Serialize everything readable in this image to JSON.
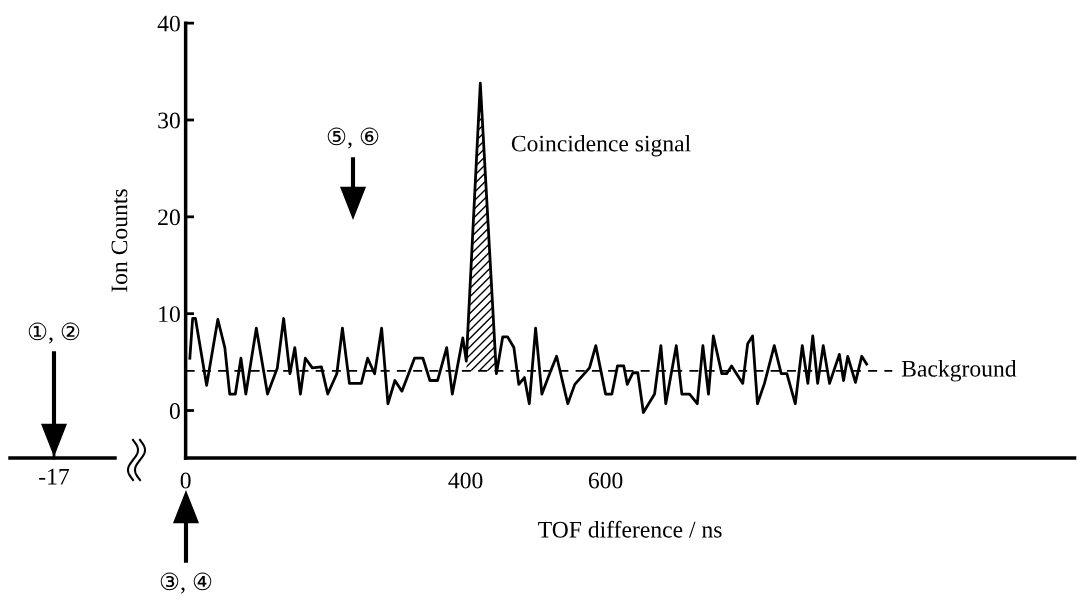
{
  "chart_data": {
    "type": "line",
    "xlabel": "TOF difference / ns",
    "ylabel": "Ion Counts",
    "xlim": [
      0,
      1270
    ],
    "ylim": [
      -4.9,
      40
    ],
    "xticks": [
      0,
      400,
      600
    ],
    "yticks": [
      0,
      10,
      20,
      30,
      40
    ],
    "grid": false,
    "marker": "none",
    "line_style": "solid",
    "series": [
      {
        "type": "line",
        "color": "#000000",
        "x": [
          6,
          10,
          14,
          30,
          46,
          56,
          63,
          71,
          79,
          86,
          101,
          117,
          131,
          140,
          149,
          156,
          164,
          171,
          181,
          194,
          203,
          216,
          224,
          234,
          251,
          260,
          270,
          280,
          289,
          299,
          309,
          327,
          339,
          349,
          360,
          373,
          381,
          396,
          401,
          421,
          444,
          453,
          460,
          469,
          476,
          484,
          491,
          500,
          509,
          520,
          530,
          546,
          556,
          577,
          586,
          600,
          609,
          617,
          626,
          631,
          639,
          646,
          654,
          670,
          679,
          686,
          701,
          709,
          720,
          731,
          739,
          747,
          754,
          766,
          773,
          780,
          796,
          803,
          810,
          817,
          827,
          841,
          851,
          859,
          871,
          881,
          889,
          896,
          903,
          911,
          920,
          934,
          940,
          946,
          957,
          966,
          973
        ],
        "values": [
          5.4,
          9.5,
          9.5,
          2.6,
          9.4,
          6.5,
          1.7,
          1.7,
          5.4,
          1.7,
          8.5,
          1.7,
          4.4,
          9.5,
          3.8,
          6.5,
          1.7,
          5.4,
          4.4,
          4.5,
          1.7,
          3.8,
          8.5,
          2.8,
          2.8,
          5.4,
          3.8,
          8.5,
          0.7,
          3.1,
          2.0,
          5.4,
          5.4,
          3.1,
          3.1,
          6.5,
          1.7,
          7.5,
          5.1,
          33.8,
          3.8,
          7.6,
          7.6,
          6.5,
          2.7,
          3.4,
          0.7,
          8.5,
          1.7,
          3.8,
          5.6,
          0.7,
          2.7,
          4.4,
          6.7,
          1.7,
          1.7,
          4.6,
          4.6,
          2.7,
          3.9,
          3.9,
          -0.2,
          1.7,
          6.7,
          0.7,
          6.7,
          1.7,
          1.7,
          0.7,
          6.7,
          1.7,
          7.7,
          3.8,
          3.8,
          4.6,
          2.8,
          6.9,
          7.7,
          0.7,
          2.8,
          6.7,
          3.8,
          3.8,
          0.7,
          6.7,
          2.8,
          7.7,
          2.8,
          6.7,
          2.8,
          5.8,
          3.1,
          5.6,
          2.9,
          5.6,
          4.8
        ]
      },
      {
        "type": "area",
        "color": "#000000",
        "x": [
          401,
          421,
          443
        ],
        "values": [
          4.1,
          33.8,
          4.1
        ]
      }
    ],
    "ref_lines": [
      {
        "axis": "y",
        "value": 4.1,
        "label": "Background",
        "line_style": "dashed",
        "color": "#000000"
      }
    ],
    "annotations": [
      {
        "text": "Coincidence signal",
        "x": 421,
        "y": 33.8
      },
      "⑤, ⑥",
      "③, ④",
      "①, ②",
      "-17"
    ]
  }
}
